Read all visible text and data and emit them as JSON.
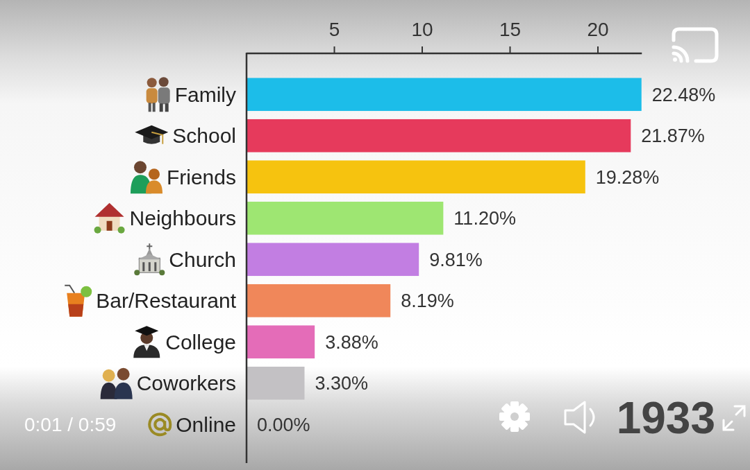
{
  "chart_data": {
    "type": "bar",
    "orientation": "horizontal",
    "categories": [
      "Family",
      "School",
      "Friends",
      "Neighbours",
      "Church",
      "Bar/Restaurant",
      "College",
      "Coworkers",
      "Online"
    ],
    "values": [
      22.48,
      21.87,
      19.28,
      11.2,
      9.81,
      8.19,
      3.88,
      3.3,
      0
    ],
    "colors": [
      "#1cbde9",
      "#e63a5c",
      "#f6c30f",
      "#9ee672",
      "#c27ee2",
      "#f0875a",
      "#e46cb8",
      "#c3c1c4",
      null
    ],
    "value_labels": [
      "22.48%",
      "21.87%",
      "19.28%",
      "11.20%",
      "9.81%",
      "8.19%",
      "3.88%",
      "3.30%",
      "0.00%"
    ],
    "xlim": [
      0,
      22.5
    ],
    "xticks": [
      5,
      10,
      15,
      20
    ],
    "annotations": [
      "1933",
      "0:01 / 0:59"
    ]
  }
}
